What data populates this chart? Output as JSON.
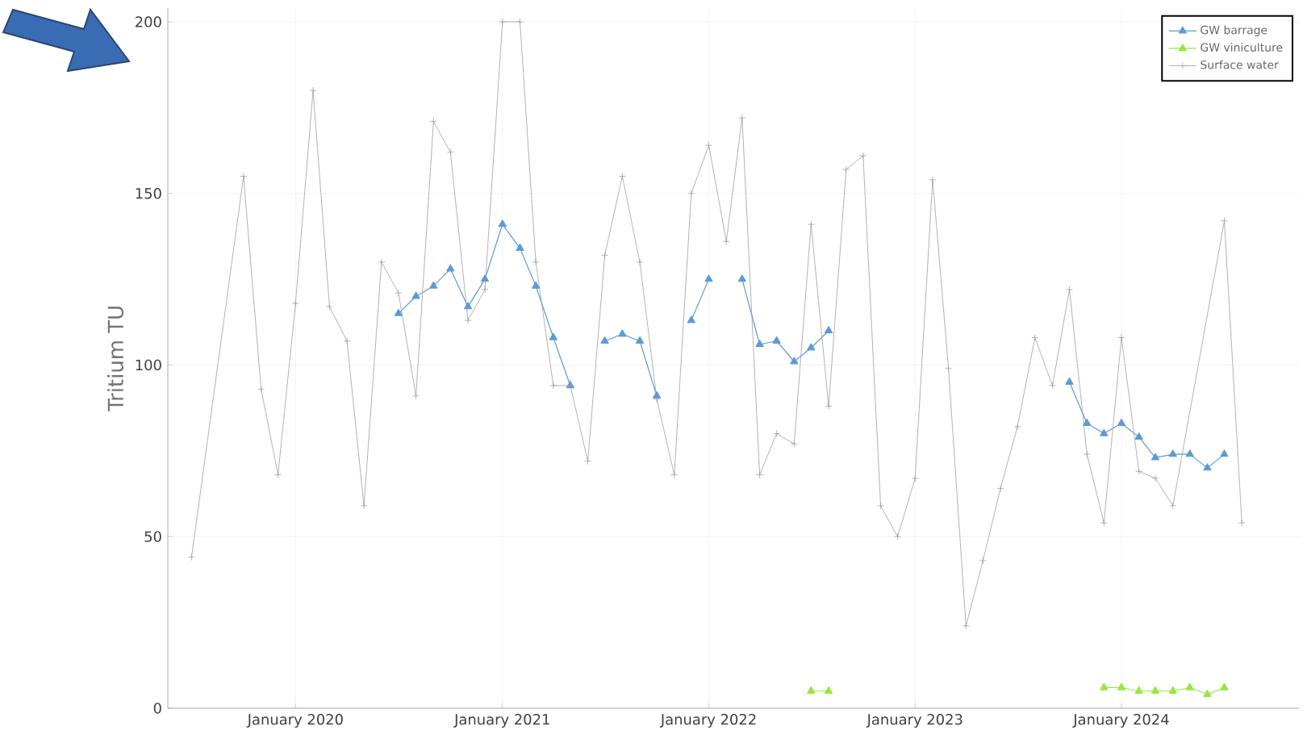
{
  "chart_data": {
    "type": "line",
    "ylabel": "Tritium TU",
    "xlim": [
      "2019-05-20",
      "2024-11-10"
    ],
    "ylim": [
      0,
      204
    ],
    "xticks": [
      {
        "value": "2020-01-01",
        "label": "January 2020"
      },
      {
        "value": "2021-01-01",
        "label": "January 2021"
      },
      {
        "value": "2022-01-01",
        "label": "January 2022"
      },
      {
        "value": "2023-01-01",
        "label": "January 2023"
      },
      {
        "value": "2024-01-01",
        "label": "January 2024"
      }
    ],
    "yticks": [
      0,
      50,
      100,
      150,
      200
    ],
    "grid": true,
    "legend": "top right",
    "series": [
      {
        "name": "GW barrage",
        "color": "#5b9bd5",
        "marker": "triangle",
        "x": [
          "2020-07",
          "2020-08",
          "2020-09",
          "2020-10",
          "2020-11",
          "2020-12",
          "2021-01",
          "2021-02",
          "2021-03",
          "2021-04",
          "2021-05",
          "2021-06",
          "2021-07",
          "2021-08",
          "2021-09",
          "2021-10",
          "2021-11",
          "2021-12",
          "2022-01",
          "2022-02",
          "2022-03",
          "2022-04",
          "2022-05",
          "2022-06",
          "2022-07",
          "2022-08",
          "2022-09",
          "2023-10",
          "2023-11",
          "2023-12",
          "2024-01",
          "2024-02",
          "2024-03",
          "2024-04",
          "2024-05",
          "2024-06",
          "2024-07"
        ],
        "values": [
          115,
          120,
          123,
          128,
          117,
          125,
          141,
          134,
          123,
          108,
          94,
          null,
          107,
          109,
          107,
          91,
          null,
          113,
          125,
          null,
          125,
          106,
          107,
          101,
          105,
          110,
          null,
          95,
          83,
          80,
          83,
          79,
          73,
          74,
          74,
          70,
          74
        ]
      },
      {
        "name": "GW viniculture",
        "color": "#99e640",
        "marker": "triangle",
        "x": [
          "2022-07",
          "2022-08",
          "2022-09",
          "2023-12",
          "2024-01",
          "2024-02",
          "2024-03",
          "2024-04",
          "2024-05",
          "2024-06",
          "2024-07"
        ],
        "values": [
          5,
          5,
          null,
          6,
          6,
          5,
          5,
          5,
          6,
          4,
          6
        ]
      },
      {
        "name": "Surface water",
        "color": "#a0a0a0",
        "marker": "cross",
        "x": [
          "2019-07",
          "2019-10",
          "2019-11",
          "2019-12",
          "2020-01",
          "2020-02",
          "2020-03",
          "2020-04",
          "2020-05",
          "2020-06",
          "2020-07",
          "2020-08",
          "2020-09",
          "2020-10",
          "2020-11",
          "2020-12",
          "2021-01",
          "2021-02",
          "2021-03",
          "2021-04",
          "2021-05",
          "2021-06",
          "2021-07",
          "2021-08",
          "2021-09",
          "2021-10",
          "2021-11",
          "2021-12",
          "2022-01",
          "2022-02",
          "2022-03",
          "2022-04",
          "2022-05",
          "2022-06",
          "2022-07",
          "2022-08",
          "2022-09",
          "2022-10",
          "2022-11",
          "2022-12",
          "2023-01",
          "2023-02",
          "2023-03",
          "2023-04",
          "2023-05",
          "2023-06",
          "2023-07",
          "2023-08",
          "2023-09",
          "2023-10",
          "2023-11",
          "2023-12",
          "2024-01",
          "2024-02",
          "2024-03",
          "2024-04",
          "2024-07",
          "2024-08"
        ],
        "values": [
          44,
          155,
          93,
          68,
          118,
          180,
          117,
          107,
          59,
          130,
          121,
          91,
          171,
          162,
          113,
          122,
          200,
          200,
          130,
          94,
          94,
          72,
          132,
          155,
          130,
          90,
          68,
          150,
          164,
          136,
          172,
          68,
          80,
          77,
          141,
          88,
          157,
          161,
          59,
          50,
          67,
          154,
          99,
          24,
          43,
          64,
          82,
          108,
          94,
          122,
          74,
          54,
          108,
          69,
          67,
          59,
          142,
          54
        ]
      }
    ]
  }
}
